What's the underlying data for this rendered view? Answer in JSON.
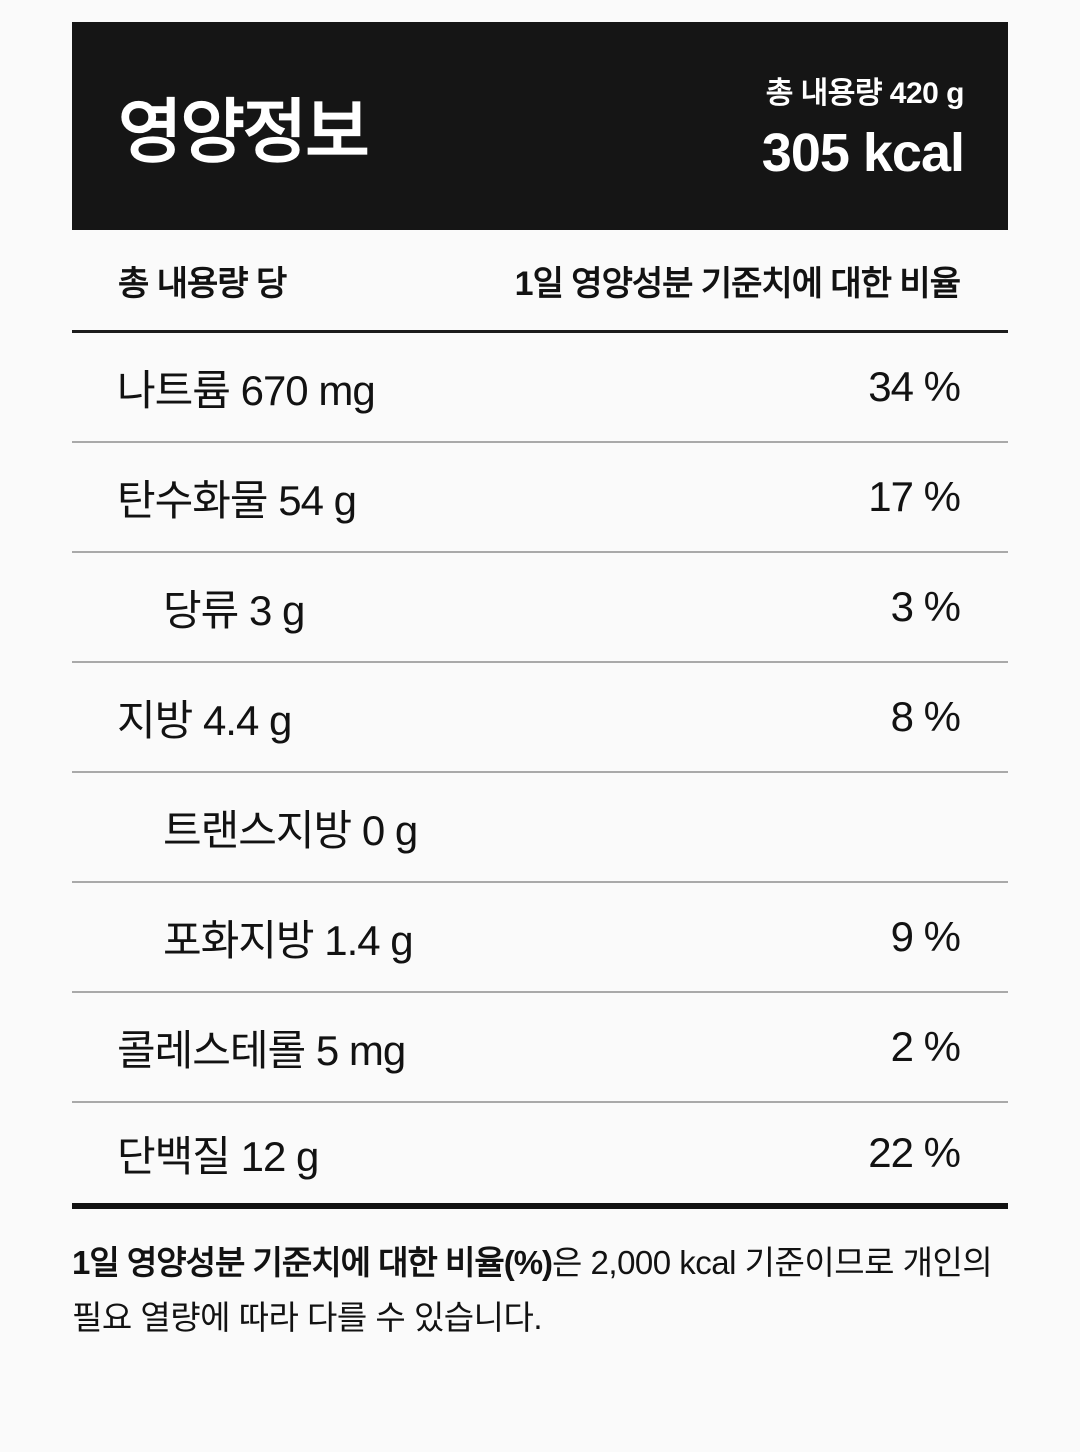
{
  "header": {
    "title": "영양정보",
    "total_amount": "총 내용량 420 g",
    "calories": "305 kcal"
  },
  "table": {
    "col_left": "총 내용량 당",
    "col_right": "1일 영양성분 기준치에 대한 비율",
    "rows": [
      {
        "name": "나트륨",
        "amount": "670 mg",
        "dv": "34 %",
        "indent": false
      },
      {
        "name": "탄수화물",
        "amount": "54 g",
        "dv": "17 %",
        "indent": false
      },
      {
        "name": "당류",
        "amount": "3 g",
        "dv": "3 %",
        "indent": true
      },
      {
        "name": "지방",
        "amount": "4.4 g",
        "dv": "8 %",
        "indent": false
      },
      {
        "name": "트랜스지방",
        "amount": "0 g",
        "dv": "",
        "indent": true
      },
      {
        "name": "포화지방",
        "amount": "1.4 g",
        "dv": "9 %",
        "indent": true
      },
      {
        "name": "콜레스테롤",
        "amount": "5 mg",
        "dv": "2 %",
        "indent": false
      },
      {
        "name": "단백질",
        "amount": "12 g",
        "dv": "22 %",
        "indent": false
      }
    ]
  },
  "footnote": {
    "bold": "1일 영양성분 기준치에 대한 비율(%)",
    "rest": "은 2,000 kcal 기준이므로 개인의 필요 열량에 따라 다를 수 있습니다."
  },
  "colors": {
    "page_bg": "#fafafa",
    "header_bg": "#151515",
    "header_text": "#ffffff",
    "body_text": "#121212",
    "row_divider": "#a9a9a9",
    "strong_line": "#121212"
  }
}
